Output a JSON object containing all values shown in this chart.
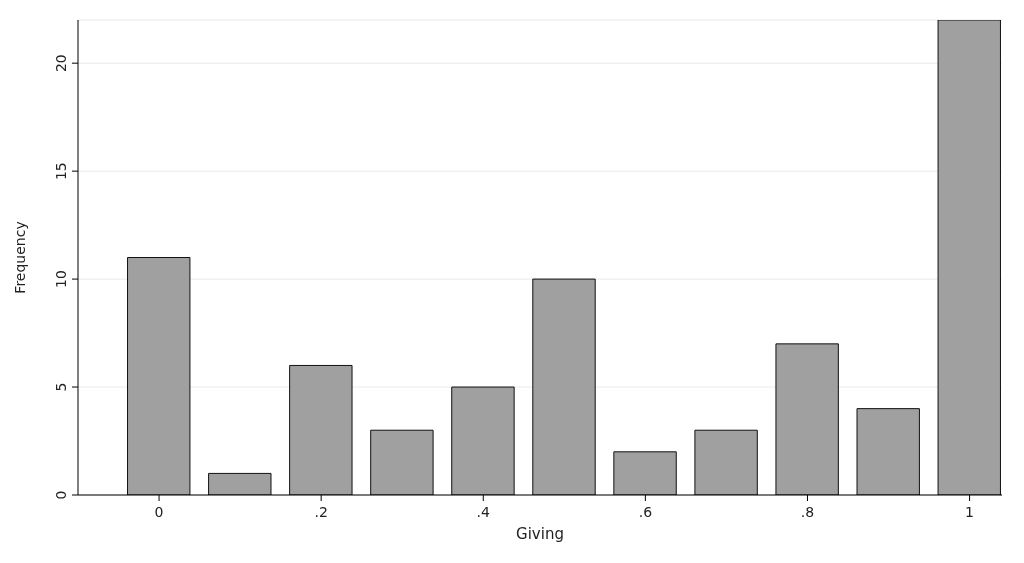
{
  "chart_data": {
    "type": "bar",
    "xlabel": "Giving",
    "ylabel": "Frequency",
    "x": [
      0,
      0.1,
      0.2,
      0.3,
      0.4,
      0.5,
      0.6,
      0.7,
      0.8,
      0.9,
      1
    ],
    "values": [
      11,
      1,
      6,
      3,
      5,
      10,
      2,
      3,
      7,
      4,
      22
    ],
    "color": "#a0a0a0",
    "xlim": [
      -0.1,
      1.04
    ],
    "xticks": [
      0,
      {
        "value": 0.2,
        "label": ".2"
      },
      {
        "value": 0.4,
        "label": ".4"
      },
      {
        "value": 0.6,
        "label": ".6"
      },
      {
        "value": 0.8,
        "label": ".8"
      },
      1
    ],
    "ylim": [
      0,
      22
    ],
    "yticks": [
      0,
      5,
      10,
      15,
      20
    ],
    "grid": "y",
    "legend": false
  }
}
